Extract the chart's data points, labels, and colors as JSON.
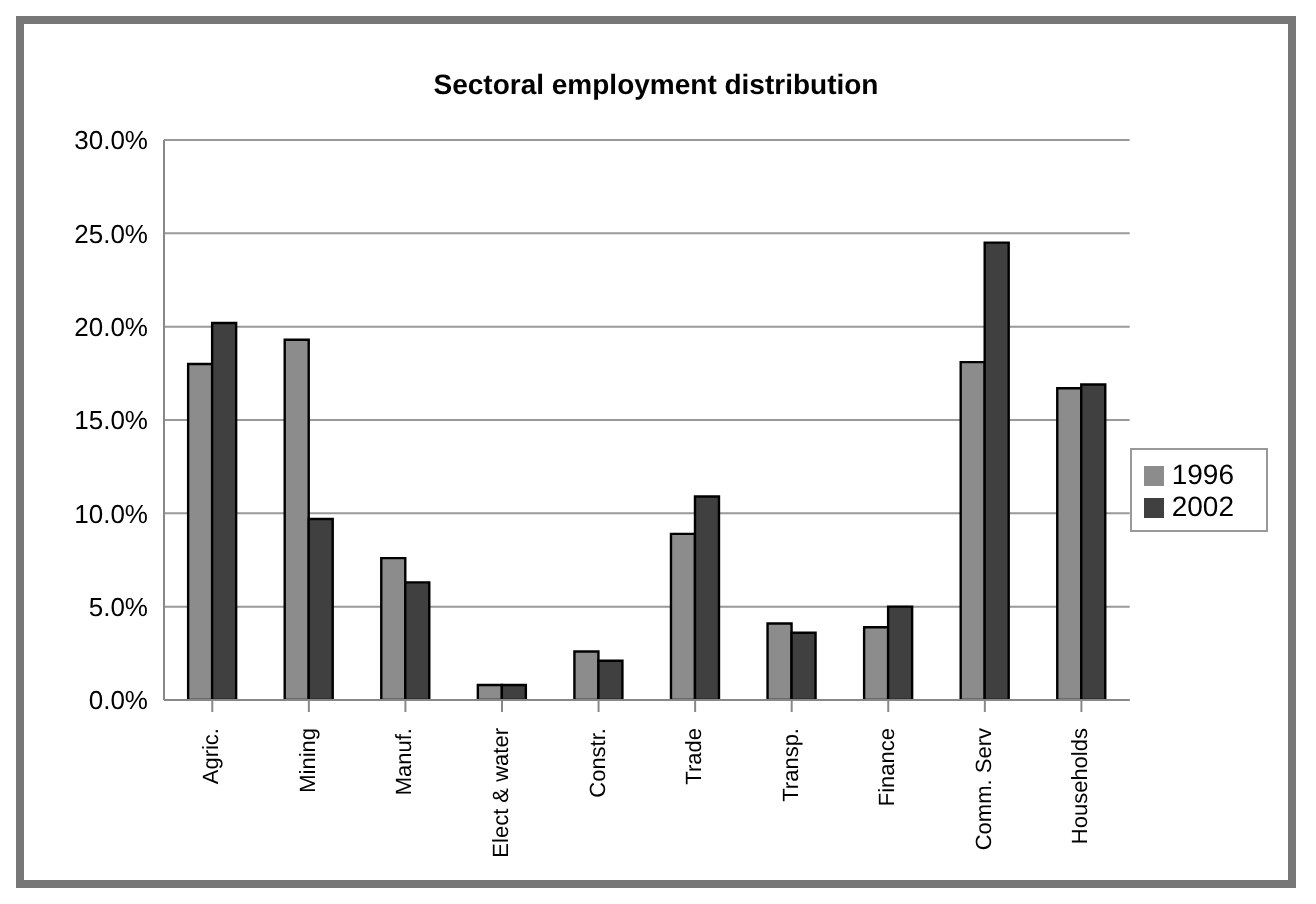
{
  "chart_data": {
    "type": "bar",
    "title": "Sectoral employment distribution",
    "categories": [
      "Agric.",
      "Mining",
      "Manuf.",
      "Elect & water",
      "Constr.",
      "Trade",
      "Transp.",
      "Finance",
      "Comm. Serv",
      "Households"
    ],
    "series": [
      {
        "name": "1996",
        "color": "#8c8c8c",
        "values": [
          18.0,
          19.3,
          7.6,
          0.8,
          2.6,
          8.9,
          4.1,
          3.9,
          18.1,
          16.7
        ]
      },
      {
        "name": "2002",
        "color": "#404040",
        "values": [
          20.2,
          9.7,
          6.3,
          0.8,
          2.1,
          10.9,
          3.6,
          5.0,
          24.5,
          16.9
        ]
      }
    ],
    "ylim": [
      0,
      30
    ],
    "yticks": [
      {
        "value": 0,
        "label": "0.0%"
      },
      {
        "value": 5,
        "label": "5.0%"
      },
      {
        "value": 10,
        "label": "10.0%"
      },
      {
        "value": 15,
        "label": "15.0%"
      },
      {
        "value": 20,
        "label": "20.0%"
      },
      {
        "value": 25,
        "label": "25.0%"
      },
      {
        "value": 30,
        "label": "30.0%"
      }
    ],
    "grid": "y",
    "legend": "right"
  }
}
